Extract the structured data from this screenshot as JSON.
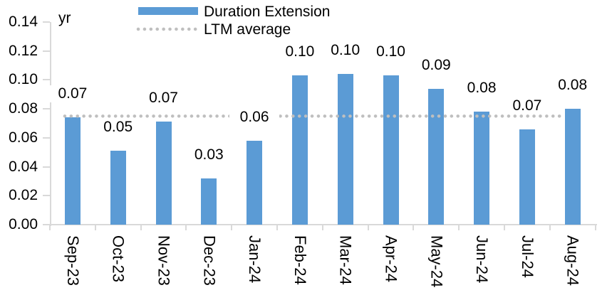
{
  "chart_data": {
    "type": "bar",
    "title": "",
    "unit_label": "yr",
    "categories": [
      "Sep-23",
      "Oct-23",
      "Nov-23",
      "Dec-23",
      "Jan-24",
      "Feb-24",
      "Mar-24",
      "Apr-24",
      "May-24",
      "Jun-24",
      "Jul-24",
      "Aug-24"
    ],
    "series": [
      {
        "name": "Duration Extension",
        "type": "bar",
        "color": "#5B9BD5",
        "values": [
          0.074,
          0.051,
          0.071,
          0.032,
          0.058,
          0.103,
          0.104,
          0.103,
          0.094,
          0.078,
          0.066,
          0.08
        ],
        "data_labels": [
          "0.07",
          "0.05",
          "0.07",
          "0.03",
          "0.06",
          "0.10",
          "0.10",
          "0.10",
          "0.09",
          "0.08",
          "0.07",
          "0.08"
        ]
      },
      {
        "name": "LTM average",
        "type": "line",
        "line_style": "dotted",
        "color": "#BFBFBF",
        "value": 0.075
      }
    ],
    "ylim": [
      0,
      0.14
    ],
    "ytick_labels": [
      "0.00",
      "0.02",
      "0.04",
      "0.06",
      "0.08",
      "0.10",
      "0.12",
      "0.14"
    ],
    "legend_position": "top",
    "grid": false,
    "axis_color": "#D9D9D9",
    "text_color": "#000000"
  }
}
